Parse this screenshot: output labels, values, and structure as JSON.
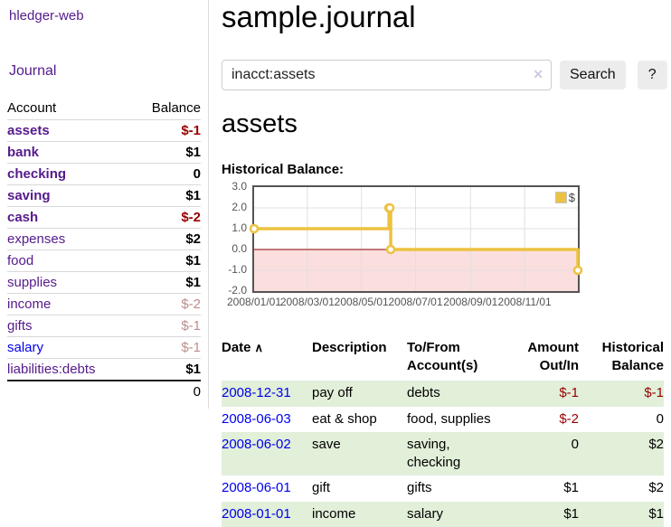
{
  "app": {
    "title": "hledger-web",
    "nav_journal": "Journal"
  },
  "sidebar": {
    "account_header": "Account",
    "balance_header": "Balance",
    "accounts": [
      {
        "name": "assets",
        "depth": 1,
        "bold": true,
        "balance": "$-1",
        "balance_style": "neg-strong",
        "name_color": "purple"
      },
      {
        "name": "bank",
        "depth": 2,
        "bold": true,
        "balance": "$1",
        "balance_style": "pos",
        "name_color": "purple"
      },
      {
        "name": "checking",
        "depth": 3,
        "bold": true,
        "balance": "0",
        "balance_style": "pos",
        "name_color": "purple"
      },
      {
        "name": "saving",
        "depth": 3,
        "bold": true,
        "balance": "$1",
        "balance_style": "pos",
        "name_color": "purple"
      },
      {
        "name": "cash",
        "depth": 2,
        "bold": true,
        "balance": "$-2",
        "balance_style": "neg-strong",
        "name_color": "purple"
      },
      {
        "name": "expenses",
        "depth": 1,
        "bold": false,
        "balance": "$2",
        "balance_style": "pos",
        "name_color": "purple"
      },
      {
        "name": "food",
        "depth": 2,
        "bold": false,
        "balance": "$1",
        "balance_style": "pos",
        "name_color": "purple"
      },
      {
        "name": "supplies",
        "depth": 2,
        "bold": false,
        "balance": "$1",
        "balance_style": "pos",
        "name_color": "purple"
      },
      {
        "name": "income",
        "depth": 1,
        "bold": false,
        "balance": "$-2",
        "balance_style": "neg-soft",
        "name_color": "purple"
      },
      {
        "name": "gifts",
        "depth": 2,
        "bold": false,
        "balance": "$-1",
        "balance_style": "neg-soft",
        "name_color": "purple"
      },
      {
        "name": "salary",
        "depth": 2,
        "bold": false,
        "balance": "$-1",
        "balance_style": "neg-soft",
        "name_color": "blue"
      },
      {
        "name": "liabilities:debts",
        "depth": 1,
        "bold": false,
        "balance": "$1",
        "balance_style": "pos",
        "name_color": "purple"
      }
    ],
    "total": "0"
  },
  "header": {
    "title": "sample.journal"
  },
  "search": {
    "value": "inacct:assets",
    "clear_icon": "✕",
    "button_label": "Search",
    "help_label": "?"
  },
  "account_page": {
    "title": "assets",
    "chart_label": "Historical Balance:"
  },
  "chart_data": {
    "type": "line",
    "step": true,
    "title": "Historical Balance",
    "series": [
      {
        "name": "$",
        "color": "#edc240",
        "points": [
          [
            "2008-01-01",
            1
          ],
          [
            "2008-06-01",
            2
          ],
          [
            "2008-06-02",
            2
          ],
          [
            "2008-06-03",
            0
          ],
          [
            "2008-12-31",
            -1
          ]
        ]
      }
    ],
    "x_start": "2008-01-01",
    "x_end": "2008-12-31",
    "x_ticks": [
      "2008/01/01",
      "2008/03/01",
      "2008/05/01",
      "2008/07/01",
      "2008/09/01",
      "2008/11/01"
    ],
    "y_ticks": [
      "3.0",
      "2.0",
      "1.0",
      "0.0",
      "-1.0",
      "-2.0"
    ],
    "ylim": [
      -2,
      3
    ],
    "grid": true,
    "legend_position": "top-right",
    "negative_fill": "#fbdede",
    "zero_line_color": "#8b0000",
    "grid_color": "#e0e0e0",
    "axis_text_color": "#545454"
  },
  "register": {
    "columns": {
      "date": "Date",
      "description": "Description",
      "accounts": "To/From Account(s)",
      "amount": "Amount Out/In",
      "balance": "Historical Balance"
    },
    "sort_icon": "∧",
    "rows": [
      {
        "date": "2008-12-31",
        "description": "pay off",
        "accounts": "debts",
        "amount": "$-1",
        "amount_neg": true,
        "balance": "$-1",
        "balance_neg": true
      },
      {
        "date": "2008-06-03",
        "description": "eat & shop",
        "accounts": "food, supplies",
        "amount": "$-2",
        "amount_neg": true,
        "balance": "0",
        "balance_neg": false
      },
      {
        "date": "2008-06-02",
        "description": "save",
        "accounts": "saving, checking",
        "amount": "0",
        "amount_neg": false,
        "balance": "$2",
        "balance_neg": false
      },
      {
        "date": "2008-06-01",
        "description": "gift",
        "accounts": "gifts",
        "amount": "$1",
        "amount_neg": false,
        "balance": "$2",
        "balance_neg": false
      },
      {
        "date": "2008-01-01",
        "description": "income",
        "accounts": "salary",
        "amount": "$1",
        "amount_neg": false,
        "balance": "$1",
        "balance_neg": false
      }
    ]
  }
}
